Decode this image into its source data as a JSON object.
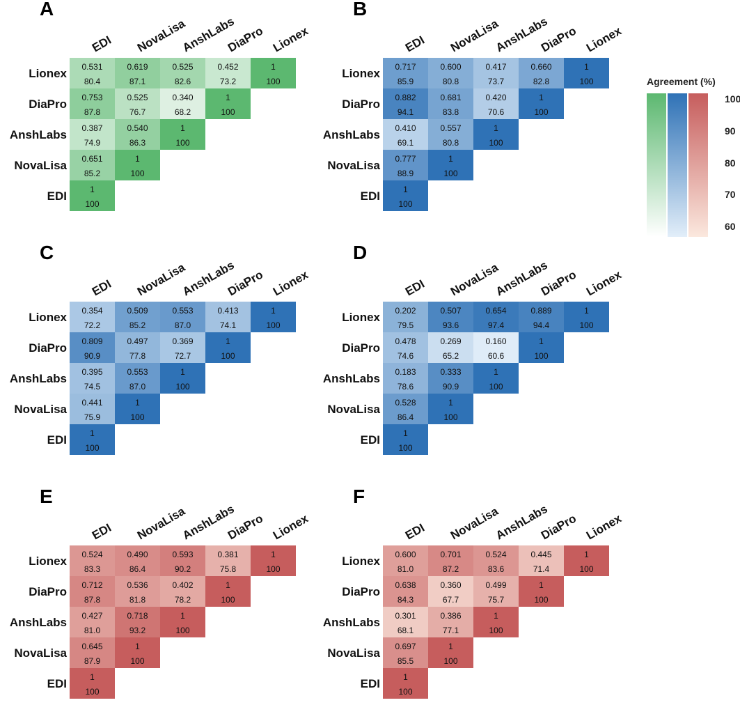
{
  "chart_data": {
    "type": "heatmap",
    "layout": "lower-triangular correlation matrices; each cell shows kappa (top) and agreement % (bottom); color encodes agreement %",
    "row_labels": [
      "Lionex",
      "DiaPro",
      "AnshLabs",
      "NovaLisa",
      "EDI"
    ],
    "column_labels": [
      "EDI",
      "NovaLisa",
      "AnshLabs",
      "DiaPro",
      "Lionex"
    ],
    "diagonal": {
      "top": "1",
      "bottom": "100"
    },
    "legend": {
      "title": "Agreement (%)",
      "ticks": [
        "100",
        "90",
        "80",
        "70",
        "60"
      ],
      "range": [
        60,
        100
      ],
      "gradients": [
        {
          "name": "green",
          "low": "#ffffff",
          "high": "#5cb870"
        },
        {
          "name": "blue",
          "low": "#e2eef9",
          "high": "#2f72b6"
        },
        {
          "name": "red",
          "low": "#fbe8de",
          "high": "#c65d5d"
        }
      ]
    },
    "panels": [
      {
        "letter": "A",
        "scheme": "green",
        "rows": [
          {
            "top": [
              "0.531",
              "0.619",
              "0.525",
              "0.452"
            ],
            "bottom": [
              "80.4",
              "87.1",
              "82.6",
              "73.2"
            ]
          },
          {
            "top": [
              "0.753",
              "0.525",
              "0.340"
            ],
            "bottom": [
              "87.8",
              "76.7",
              "68.2"
            ]
          },
          {
            "top": [
              "0.387",
              "0.540"
            ],
            "bottom": [
              "74.9",
              "86.3"
            ]
          },
          {
            "top": [
              "0.651"
            ],
            "bottom": [
              "85.2"
            ]
          },
          {
            "top": [],
            "bottom": []
          }
        ]
      },
      {
        "letter": "B",
        "scheme": "blue",
        "rows": [
          {
            "top": [
              "0.717",
              "0.600",
              "0.417",
              "0.660"
            ],
            "bottom": [
              "85.9",
              "80.8",
              "73.7",
              "82.8"
            ]
          },
          {
            "top": [
              "0.882",
              "0.681",
              "0.420"
            ],
            "bottom": [
              "94.1",
              "83.8",
              "70.6"
            ]
          },
          {
            "top": [
              "0.410",
              "0.557"
            ],
            "bottom": [
              "69.1",
              "80.8"
            ]
          },
          {
            "top": [
              "0.777"
            ],
            "bottom": [
              "88.9"
            ]
          },
          {
            "top": [],
            "bottom": []
          }
        ]
      },
      {
        "letter": "C",
        "scheme": "blue",
        "rows": [
          {
            "top": [
              "0.354",
              "0.509",
              "0.553",
              "0.413"
            ],
            "bottom": [
              "72.2",
              "85.2",
              "87.0",
              "74.1"
            ]
          },
          {
            "top": [
              "0.809",
              "0.497",
              "0.369"
            ],
            "bottom": [
              "90.9",
              "77.8",
              "72.7"
            ]
          },
          {
            "top": [
              "0.395",
              "0.553"
            ],
            "bottom": [
              "74.5",
              "87.0"
            ]
          },
          {
            "top": [
              "0.441"
            ],
            "bottom": [
              "75.9"
            ]
          },
          {
            "top": [],
            "bottom": []
          }
        ]
      },
      {
        "letter": "D",
        "scheme": "blue",
        "rows": [
          {
            "top": [
              "0.202",
              "0.507",
              "0.654",
              "0.889"
            ],
            "bottom": [
              "79.5",
              "93.6",
              "97.4",
              "94.4"
            ]
          },
          {
            "top": [
              "0.478",
              "0.269",
              "0.160"
            ],
            "bottom": [
              "74.6",
              "65.2",
              "60.6"
            ]
          },
          {
            "top": [
              "0.183",
              "0.333"
            ],
            "bottom": [
              "78.6",
              "90.9"
            ]
          },
          {
            "top": [
              "0.528"
            ],
            "bottom": [
              "86.4"
            ]
          },
          {
            "top": [],
            "bottom": []
          }
        ]
      },
      {
        "letter": "E",
        "scheme": "red",
        "rows": [
          {
            "top": [
              "0.524",
              "0.490",
              "0.593",
              "0.381"
            ],
            "bottom": [
              "83.3",
              "86.4",
              "90.2",
              "75.8"
            ]
          },
          {
            "top": [
              "0.712",
              "0.536",
              "0.402"
            ],
            "bottom": [
              "87.8",
              "81.8",
              "78.2"
            ]
          },
          {
            "top": [
              "0.427",
              "0.718"
            ],
            "bottom": [
              "81.0",
              "93.2"
            ]
          },
          {
            "top": [
              "0.645"
            ],
            "bottom": [
              "87.9"
            ]
          },
          {
            "top": [],
            "bottom": []
          }
        ]
      },
      {
        "letter": "F",
        "scheme": "red",
        "rows": [
          {
            "top": [
              "0.600",
              "0.701",
              "0.524",
              "0.445"
            ],
            "bottom": [
              "81.0",
              "87.2",
              "83.6",
              "71.4"
            ]
          },
          {
            "top": [
              "0.638",
              "0.360",
              "0.499"
            ],
            "bottom": [
              "84.3",
              "67.7",
              "75.7"
            ]
          },
          {
            "top": [
              "0.301",
              "0.386"
            ],
            "bottom": [
              "68.1",
              "77.1"
            ]
          },
          {
            "top": [
              "0.697"
            ],
            "bottom": [
              "85.5"
            ]
          },
          {
            "top": [],
            "bottom": []
          }
        ]
      }
    ]
  }
}
